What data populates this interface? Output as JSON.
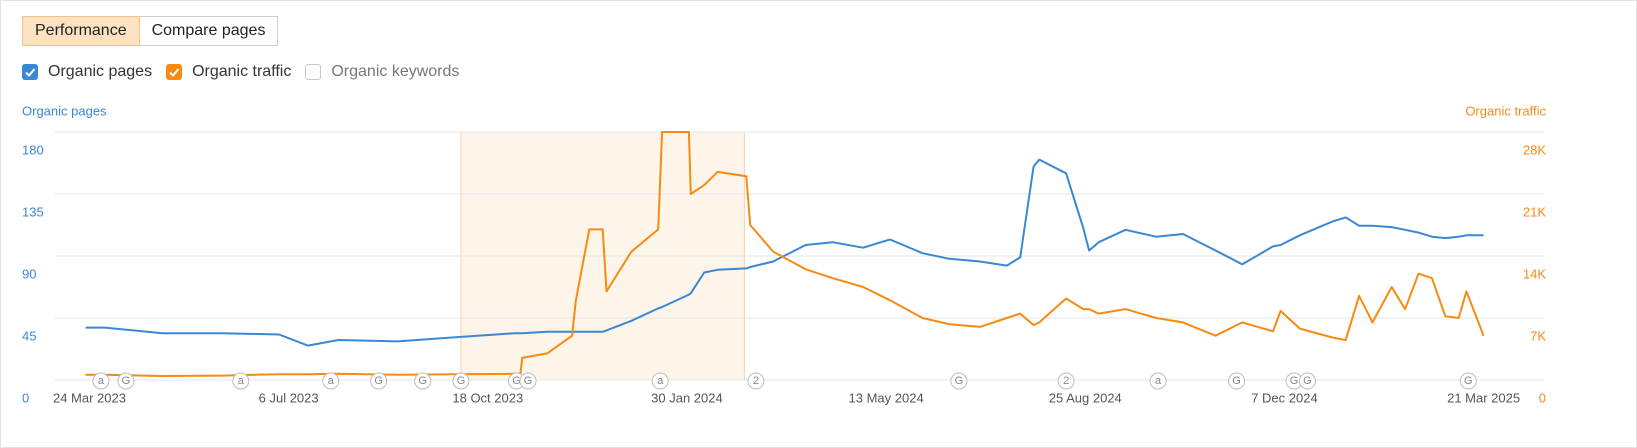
{
  "ui": {
    "tabs": [
      "Performance",
      "Compare pages"
    ],
    "unchecked_metric": "Organic keywords"
  },
  "chart_data": {
    "type": "line",
    "y_label": "Organic pages",
    "y2_label": "Organic traffic",
    "x": [
      "2023-03-22",
      "2023-04-01",
      "2023-05-01",
      "2023-06-01",
      "2023-07-01",
      "2023-07-16",
      "2023-08-01",
      "2023-09-01",
      "2023-10-01",
      "2023-11-01",
      "2023-11-04",
      "2023-11-05",
      "2023-11-18",
      "2023-12-01",
      "2023-12-03",
      "2023-12-10",
      "2023-12-17",
      "2023-12-19",
      "2024-01-01",
      "2024-01-15",
      "2024-01-17",
      "2024-01-31",
      "2024-02-01",
      "2024-02-08",
      "2024-02-15",
      "2024-03-01",
      "2024-03-03",
      "2024-03-15",
      "2024-04-01",
      "2024-04-15",
      "2024-05-01",
      "2024-05-15",
      "2024-06-01",
      "2024-06-15",
      "2024-07-01",
      "2024-07-15",
      "2024-07-22",
      "2024-07-29",
      "2024-08-01",
      "2024-08-15",
      "2024-08-24",
      "2024-08-27",
      "2024-09-01",
      "2024-09-15",
      "2024-10-01",
      "2024-10-15",
      "2024-11-01",
      "2024-11-15",
      "2024-12-01",
      "2024-12-05",
      "2024-12-15",
      "2025-01-01",
      "2025-01-08",
      "2025-01-15",
      "2025-01-22",
      "2025-02-01",
      "2025-02-08",
      "2025-02-15",
      "2025-02-22",
      "2025-03-01",
      "2025-03-08",
      "2025-03-12",
      "2025-03-21"
    ],
    "series": [
      {
        "name": "Organic pages",
        "color": "#3a87d3",
        "axis": "y",
        "values": [
          38,
          38,
          34,
          34,
          33,
          25,
          29,
          28,
          31,
          34,
          34,
          34,
          35,
          35,
          35,
          35,
          35,
          36,
          43,
          52,
          53,
          62,
          63,
          78,
          80,
          81,
          82,
          86,
          98,
          100,
          96,
          102,
          92,
          88,
          86,
          83,
          89,
          155,
          160,
          150,
          110,
          94,
          100,
          109,
          104,
          106,
          94,
          84,
          97,
          98,
          105,
          115,
          118,
          112,
          112,
          111,
          109,
          107,
          104,
          103,
          104,
          105,
          105
        ]
      },
      {
        "name": "Organic traffic",
        "color": "#f78b12",
        "axis": "y2",
        "values": [
          600,
          600,
          450,
          500,
          650,
          650,
          700,
          600,
          650,
          700,
          700,
          2500,
          3000,
          5000,
          9000,
          17000,
          17000,
          10000,
          14500,
          17000,
          28000,
          28000,
          21000,
          22000,
          23500,
          23000,
          17500,
          14500,
          12500,
          11500,
          10500,
          9000,
          7000,
          6300,
          6000,
          7000,
          7500,
          6200,
          6500,
          9200,
          8000,
          8000,
          7500,
          8000,
          7000,
          6500,
          5000,
          6500,
          5500,
          7800,
          5800,
          4800,
          4500,
          9500,
          6500,
          10500,
          8000,
          12000,
          11500,
          7200,
          7000,
          10000,
          5000
        ]
      }
    ],
    "xlim": [
      "2023-03-06",
      "2025-04-09"
    ],
    "xticks": [
      {
        "value": "2023-03-24",
        "label": "24 Mar 2023"
      },
      {
        "value": "2023-07-06",
        "label": "6 Jul 2023"
      },
      {
        "value": "2023-10-18",
        "label": "18 Oct 2023"
      },
      {
        "value": "2024-01-30",
        "label": "30 Jan 2024"
      },
      {
        "value": "2024-05-13",
        "label": "13 May 2024"
      },
      {
        "value": "2024-08-25",
        "label": "25 Aug 2024"
      },
      {
        "value": "2024-12-07",
        "label": "7 Dec 2024"
      },
      {
        "value": "2025-03-21",
        "label": "21 Mar 2025"
      }
    ],
    "ylim": [
      0,
      180
    ],
    "yticks": [
      0,
      45,
      90,
      135,
      180
    ],
    "y2lim": [
      0,
      28000
    ],
    "y2ticks": [
      0,
      {
        "value": 7000,
        "label": "7K"
      },
      {
        "value": 14000,
        "label": "14K"
      },
      {
        "value": 21000,
        "label": "21K"
      },
      {
        "value": 28000,
        "label": "28K"
      }
    ],
    "grid": true,
    "highlight": [
      "2023-10-04",
      "2024-02-29"
    ],
    "events": [
      {
        "date": "2023-03-30",
        "label": "a"
      },
      {
        "date": "2023-04-12",
        "label": "G"
      },
      {
        "date": "2023-06-11",
        "label": "a"
      },
      {
        "date": "2023-07-28",
        "label": "a"
      },
      {
        "date": "2023-08-22",
        "label": "G"
      },
      {
        "date": "2023-09-14",
        "label": "G"
      },
      {
        "date": "2023-10-04",
        "label": "G"
      },
      {
        "date": "2023-11-02",
        "label": "G"
      },
      {
        "date": "2023-11-08",
        "label": "G"
      },
      {
        "date": "2024-01-16",
        "label": "a"
      },
      {
        "date": "2024-03-06",
        "label": "2"
      },
      {
        "date": "2024-06-20",
        "label": "G"
      },
      {
        "date": "2024-08-15",
        "label": "2"
      },
      {
        "date": "2024-10-02",
        "label": "a"
      },
      {
        "date": "2024-11-12",
        "label": "G"
      },
      {
        "date": "2024-12-12",
        "label": "G"
      },
      {
        "date": "2024-12-19",
        "label": "G"
      },
      {
        "date": "2025-03-13",
        "label": "G"
      }
    ]
  }
}
